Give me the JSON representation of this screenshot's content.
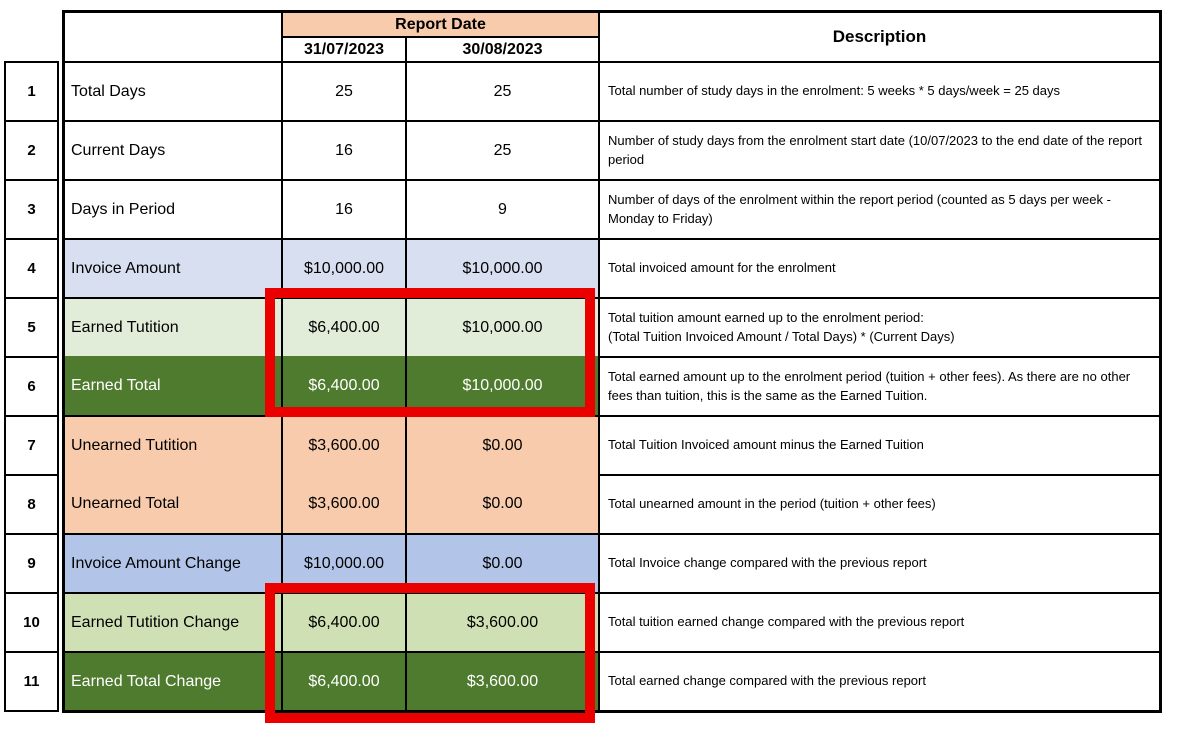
{
  "title": "Enrolment tuition earned / unearned report table",
  "colors": {
    "peach": "#F8CBAD",
    "lavender": "#D8DFF0",
    "blue": "#B2C5E8",
    "green_pale": "#E2EDD9",
    "green_mid": "#CFE1B4",
    "green_dark": "#4F7B2F",
    "highlight_red": "#EB0000",
    "border_black": "#000000"
  },
  "header": {
    "report_date_label": "Report Date",
    "description_label": "Description",
    "report_dates": [
      "31/07/2023",
      "30/08/2023"
    ]
  },
  "rows": [
    {
      "num": "1",
      "label": "Total Days",
      "values": [
        "25",
        "25"
      ],
      "description": "Total number of study days in the enrolment: 5 weeks * 5 days/week = 25 days",
      "style": "plain",
      "merge_above": false
    },
    {
      "num": "2",
      "label": "Current Days",
      "values": [
        "16",
        "25"
      ],
      "description": "Number of study days from the enrolment start date (10/07/2023 to the end date of the report period",
      "style": "plain",
      "merge_above": false
    },
    {
      "num": "3",
      "label": "Days in Period",
      "values": [
        "16",
        "9"
      ],
      "description": "Number of days of the enrolment within the report period (counted as 5 days per week - Monday to Friday)",
      "style": "plain",
      "merge_above": false
    },
    {
      "num": "4",
      "label": "Invoice Amount",
      "values": [
        "$10,000.00",
        "$10,000.00"
      ],
      "description": "Total invoiced amount for the enrolment",
      "style": "lavender",
      "merge_above": false
    },
    {
      "num": "5",
      "label": "Earned Tutition",
      "values": [
        "$6,400.00",
        "$10,000.00"
      ],
      "description": "Total tuition amount earned up to the enrolment period:\n(Total Tuition Invoiced Amount / Total Days) * (Current Days)",
      "style": "green_pale",
      "merge_above": false
    },
    {
      "num": "6",
      "label": "Earned Total",
      "values": [
        "$6,400.00",
        "$10,000.00"
      ],
      "description": "Total earned amount up to the enrolment period (tuition + other fees). As there are no other fees than tuition, this is the same as the Earned Tuition.",
      "style": "green_dark",
      "merge_above": true
    },
    {
      "num": "7",
      "label": "Unearned Tutition",
      "values": [
        "$3,600.00",
        "$0.00"
      ],
      "description": "Total Tuition Invoiced amount minus the Earned Tuition",
      "style": "peach",
      "merge_above": false
    },
    {
      "num": "8",
      "label": "Unearned Total",
      "values": [
        "$3,600.00",
        "$0.00"
      ],
      "description": "Total unearned amount in the period (tuition + other fees)",
      "style": "peach",
      "merge_above": true
    },
    {
      "num": "9",
      "label": "Invoice Amount Change",
      "values": [
        "$10,000.00",
        "$0.00"
      ],
      "description": "Total Invoice change compared with the previous report",
      "style": "blue",
      "merge_above": false
    },
    {
      "num": "10",
      "label": "Earned Tutition Change",
      "values": [
        "$6,400.00",
        "$3,600.00"
      ],
      "description": "Total tuition earned change compared with the previous report",
      "style": "green_mid",
      "merge_above": false
    },
    {
      "num": "11",
      "label": "Earned Total Change",
      "values": [
        "$6,400.00",
        "$3,600.00"
      ],
      "description": "Total earned change compared with the previous report",
      "style": "green_dark",
      "merge_above": false
    }
  ],
  "annotations": {
    "highlight_boxes": [
      {
        "highlighted_rows": "5-6",
        "highlighted_columns": "report date value columns"
      },
      {
        "highlighted_rows": "10-11",
        "highlighted_columns": "report date value columns"
      }
    ]
  }
}
